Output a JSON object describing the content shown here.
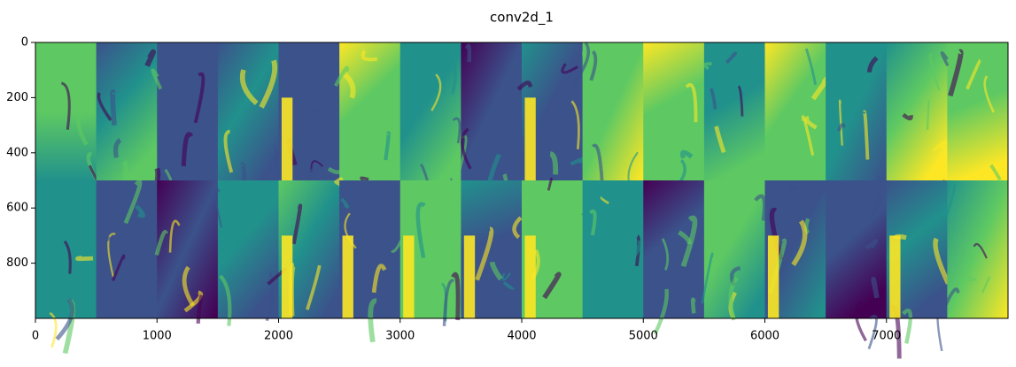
{
  "chart_data": {
    "type": "image",
    "title": "conv2d_1",
    "colormap": "viridis",
    "xlim": [
      0,
      8000
    ],
    "ylim": [
      1000,
      0
    ],
    "xticks": [
      0,
      1000,
      2000,
      3000,
      4000,
      5000,
      6000,
      7000
    ],
    "yticks": [
      0,
      200,
      400,
      600,
      800
    ]
  }
}
